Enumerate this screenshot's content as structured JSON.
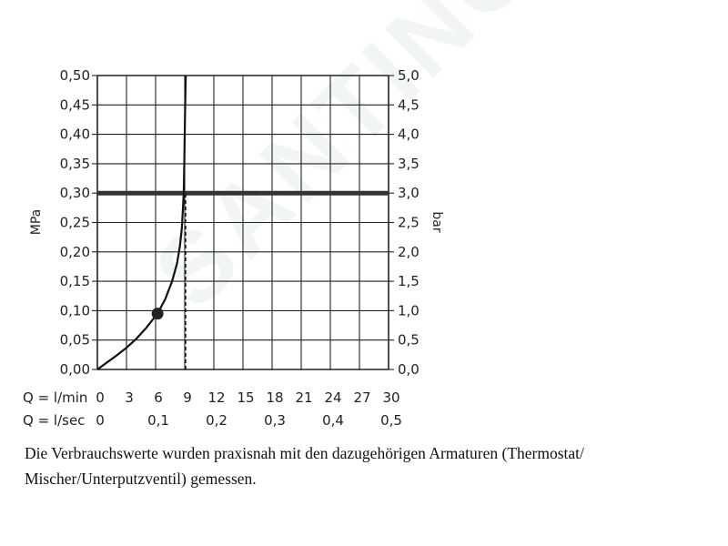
{
  "watermark": "SANTINO",
  "chart_data": {
    "type": "line",
    "ylabel_left": "MPa",
    "ylabel_right": "bar",
    "xlabel_lmin": "Q = l/min",
    "xlabel_lsec": "Q = l/sec",
    "xlim": [
      0,
      30
    ],
    "ylim": [
      0,
      0.5
    ],
    "grid": true,
    "x_ticks_lmin": [
      "0",
      "3",
      "6",
      "9",
      "12",
      "15",
      "18",
      "21",
      "24",
      "27",
      "30"
    ],
    "x_ticks_lsec": [
      {
        "x": 0,
        "label": "0"
      },
      {
        "x": 6,
        "label": "0,1"
      },
      {
        "x": 12,
        "label": "0,2"
      },
      {
        "x": 18,
        "label": "0,3"
      },
      {
        "x": 24,
        "label": "0,4"
      },
      {
        "x": 30,
        "label": "0,5"
      }
    ],
    "y_ticks_left": [
      "0,00",
      "0,05",
      "0,10",
      "0,15",
      "0,20",
      "0,25",
      "0,30",
      "0,35",
      "0,40",
      "0,45",
      "0,50"
    ],
    "y_ticks_right": [
      "0,0",
      "0,5",
      "1,0",
      "1,5",
      "2,0",
      "2,5",
      "3,0",
      "3,5",
      "4,0",
      "4,5",
      "5,0"
    ],
    "series": [
      {
        "x": [
          0,
          1,
          2,
          3,
          4,
          5,
          6.2,
          7,
          7.7,
          8.2,
          8.5,
          8.7,
          8.8,
          8.9,
          8.95,
          9.0,
          9.05,
          9.1
        ],
        "y": [
          0,
          0.012,
          0.024,
          0.037,
          0.052,
          0.07,
          0.095,
          0.12,
          0.15,
          0.18,
          0.21,
          0.24,
          0.27,
          0.3,
          0.35,
          0.4,
          0.45,
          0.5
        ]
      }
    ],
    "marker": {
      "x": 6.2,
      "y": 0.095
    },
    "reference_line": {
      "y": 0.3
    },
    "drop_line": {
      "x": 9.1,
      "y_from": 0,
      "y_to": 0.3
    }
  },
  "note": "Die Verbrauchswerte wurden praxisnah mit den dazugehörigen Armaturen (Thermostat/ Mischer/Unterputzventil) gemessen."
}
